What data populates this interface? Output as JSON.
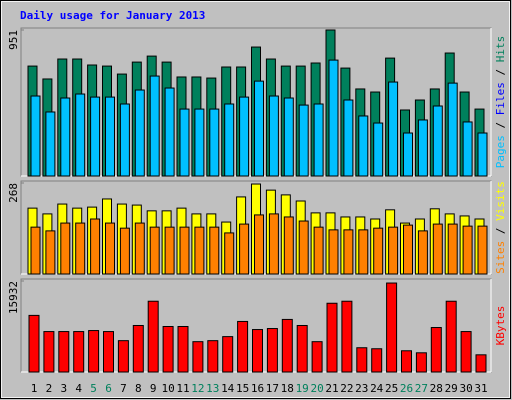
{
  "title": "Daily usage for January 2013",
  "chart_data": [
    {
      "type": "bar",
      "ylim": [
        0,
        951
      ],
      "yticks": [
        951
      ],
      "y_label_parts": [
        {
          "text": "Pages",
          "color": "#00C0FF"
        },
        {
          "text": " / ",
          "color": "#000000"
        },
        {
          "text": "Files",
          "color": "#0000FF"
        },
        {
          "text": " / ",
          "color": "#000000"
        },
        {
          "text": "Hits",
          "color": "#00805C"
        }
      ],
      "series": [
        {
          "color": "#00805C",
          "values": [
            716,
            632,
            762,
            762,
            723,
            716,
            664,
            742,
            781,
            742,
            645,
            645,
            638,
            710,
            710,
            840,
            762,
            716,
            716,
            736,
            951,
            703,
            567,
            547,
            768,
            430,
            495,
            567,
            801,
            547,
            436
          ]
        },
        {
          "color": "#00C0FF",
          "values": [
            521,
            417,
            508,
            534,
            514,
            514,
            469,
            560,
            651,
            573,
            436,
            436,
            436,
            469,
            514,
            618,
            521,
            508,
            462,
            469,
            755,
            495,
            391,
            345,
            612,
            280,
            365,
            456,
            605,
            352,
            280
          ]
        }
      ]
    },
    {
      "type": "bar",
      "ylim": [
        0,
        268
      ],
      "yticks": [
        268
      ],
      "y_label_parts": [
        {
          "text": "Sites",
          "color": "#FF8000"
        },
        {
          "text": " / ",
          "color": "#000000"
        },
        {
          "text": "Visits",
          "color": "#FFFF00"
        }
      ],
      "series": [
        {
          "color": "#FFFF00",
          "values": [
            194,
            177,
            206,
            194,
            197,
            221,
            206,
            203,
            186,
            186,
            194,
            177,
            177,
            153,
            227,
            265,
            247,
            233,
            215,
            180,
            180,
            168,
            168,
            162,
            189,
            150,
            162,
            192,
            177,
            171,
            162
          ]
        },
        {
          "color": "#FF8000",
          "values": [
            138,
            127,
            150,
            150,
            162,
            150,
            135,
            150,
            138,
            138,
            138,
            138,
            138,
            121,
            147,
            174,
            177,
            168,
            156,
            138,
            130,
            130,
            130,
            135,
            138,
            144,
            127,
            147,
            147,
            141,
            141
          ]
        }
      ]
    },
    {
      "type": "bar",
      "ylim": [
        0,
        15932
      ],
      "yticks": [
        15932
      ],
      "y_label_parts": [
        {
          "text": "KBytes",
          "color": "#FF0000"
        }
      ],
      "categories": [
        "1",
        "2",
        "3",
        "4",
        "5",
        "6",
        "7",
        "8",
        "9",
        "10",
        "11",
        "12",
        "13",
        "14",
        "15",
        "16",
        "17",
        "18",
        "19",
        "20",
        "21",
        "22",
        "23",
        "24",
        "25",
        "26",
        "27",
        "28",
        "29",
        "30",
        "31"
      ],
      "category_colors": [
        "#000000",
        "#000000",
        "#000000",
        "#000000",
        "#00805C",
        "#00805C",
        "#000000",
        "#000000",
        "#000000",
        "#000000",
        "#000000",
        "#00805C",
        "#00805C",
        "#000000",
        "#000000",
        "#000000",
        "#000000",
        "#000000",
        "#00805C",
        "#00805C",
        "#000000",
        "#000000",
        "#000000",
        "#000000",
        "#000000",
        "#00805C",
        "#00805C",
        "#000000",
        "#000000",
        "#000000",
        "#000000"
      ],
      "series": [
        {
          "color": "#FF0000",
          "values": [
            9912,
            7080,
            7080,
            7080,
            7257,
            7080,
            5487,
            8142,
            12390,
            7965,
            7965,
            5310,
            5487,
            6195,
            8850,
            7434,
            7611,
            9204,
            8142,
            5310,
            12036,
            12390,
            4248,
            4071,
            15576,
            3717,
            3363,
            7788,
            12390,
            7080,
            3009
          ]
        }
      ]
    }
  ]
}
